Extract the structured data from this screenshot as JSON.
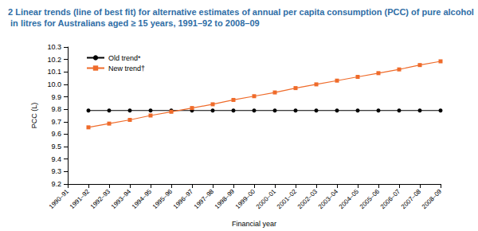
{
  "chart_data": {
    "type": "line",
    "title": "2 Linear trends (line of best fit) for alternative estimates of annual per capita consumption (PCC) of pure alcohol in litres for Australians aged ≥ 15 years, 1991–92 to 2008–09",
    "x_label": "Financial year",
    "y_label": "PCC (L)",
    "categories": [
      "1990–91",
      "1991–92",
      "1992–93",
      "1993–94",
      "1994–95",
      "1995–96",
      "1996–97",
      "1997–98",
      "1998–99",
      "1999–00",
      "2000–01",
      "2001–02",
      "2002–03",
      "2003–04",
      "2004–05",
      "2005–06",
      "2006–07",
      "2007–08",
      "2008–09"
    ],
    "series": [
      {
        "name": "Old trend*",
        "color": "#000000",
        "marker": "circle",
        "values": [
          null,
          9.79,
          9.79,
          9.79,
          9.79,
          9.79,
          9.79,
          9.79,
          9.79,
          9.79,
          9.79,
          9.79,
          9.79,
          9.79,
          9.79,
          9.79,
          9.79,
          9.79,
          9.79
        ]
      },
      {
        "name": "New trend†",
        "color": "#ef6b2a",
        "marker": "square",
        "values": [
          null,
          9.655,
          9.685,
          9.715,
          9.75,
          9.78,
          9.81,
          9.84,
          9.875,
          9.905,
          9.935,
          9.97,
          10.0,
          10.03,
          10.06,
          10.09,
          10.12,
          10.155,
          10.185
        ]
      }
    ],
    "ylim": [
      9.2,
      10.3
    ],
    "yticks": [
      9.2,
      9.3,
      9.4,
      9.5,
      9.6,
      9.7,
      9.8,
      9.9,
      {
        "value": 10,
        "label": "10.0"
      },
      10.1,
      10.2,
      10.3
    ],
    "grid": false,
    "legend": "top-left"
  }
}
